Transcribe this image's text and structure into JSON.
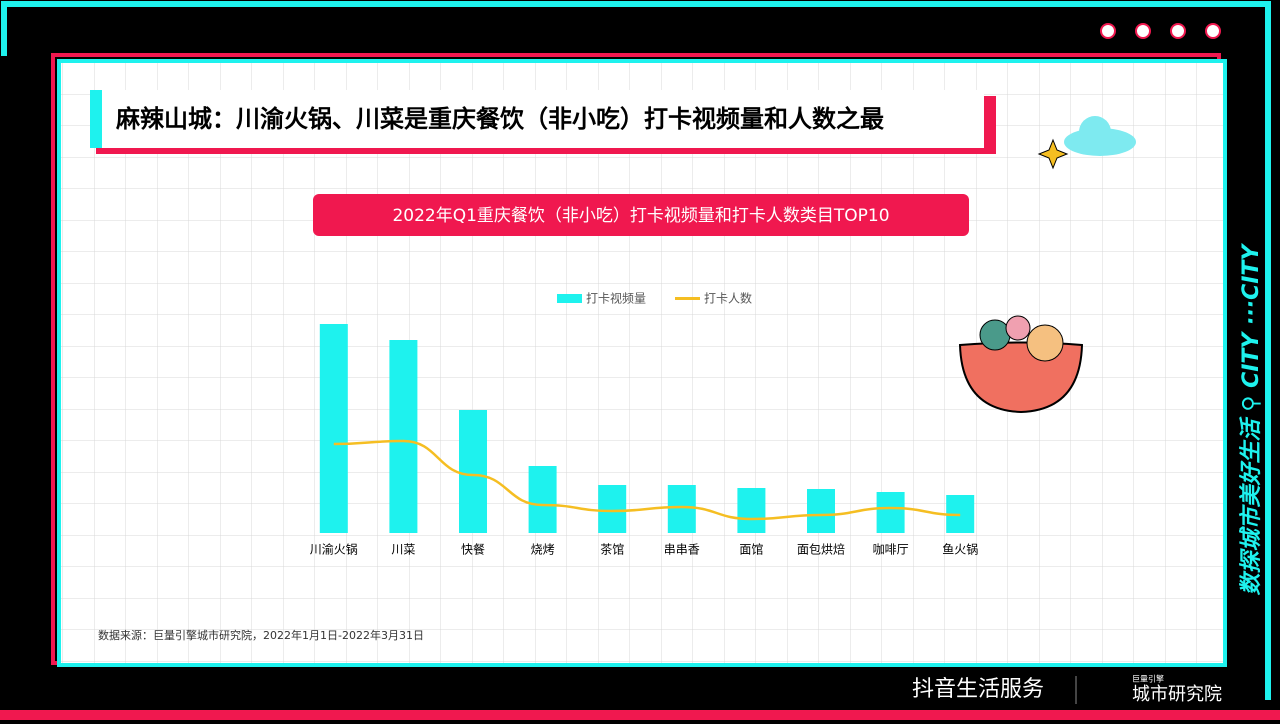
{
  "slide_title": "麻辣山城：川渝火锅、川菜是重庆餐饮（非小吃）打卡视频量和人数之最",
  "side_text": "数探城市美好生活 ⚲ CITY ···CITY",
  "source": "数据来源：巨量引擎城市研究院，2022年1月1日-2022年3月31日",
  "footer": {
    "brand": "抖音生活服务",
    "institute_small": "巨量引擎",
    "institute": "城市研究院"
  },
  "chart_data": {
    "type": "bar_line",
    "title": "2022年Q1重庆餐饮（非小吃）打卡视频量和打卡人数类目TOP10",
    "categories": [
      "川渝火锅",
      "川菜",
      "快餐",
      "烧烤",
      "茶馆",
      "串串香",
      "面馆",
      "面包烘焙",
      "咖啡厅",
      "鱼火锅"
    ],
    "series": [
      {
        "name": "打卡视频量",
        "color": "#1ef2ee",
        "kind": "bar",
        "values": [
          209,
          193,
          123,
          67,
          48,
          48,
          45,
          44,
          41,
          38
        ]
      },
      {
        "name": "打卡人数",
        "color": "#f5be22",
        "kind": "line",
        "values": [
          89,
          92,
          58,
          28,
          22,
          26,
          14,
          18,
          25,
          18
        ]
      }
    ],
    "ylim": [
      0,
      220
    ],
    "legend": "top"
  }
}
